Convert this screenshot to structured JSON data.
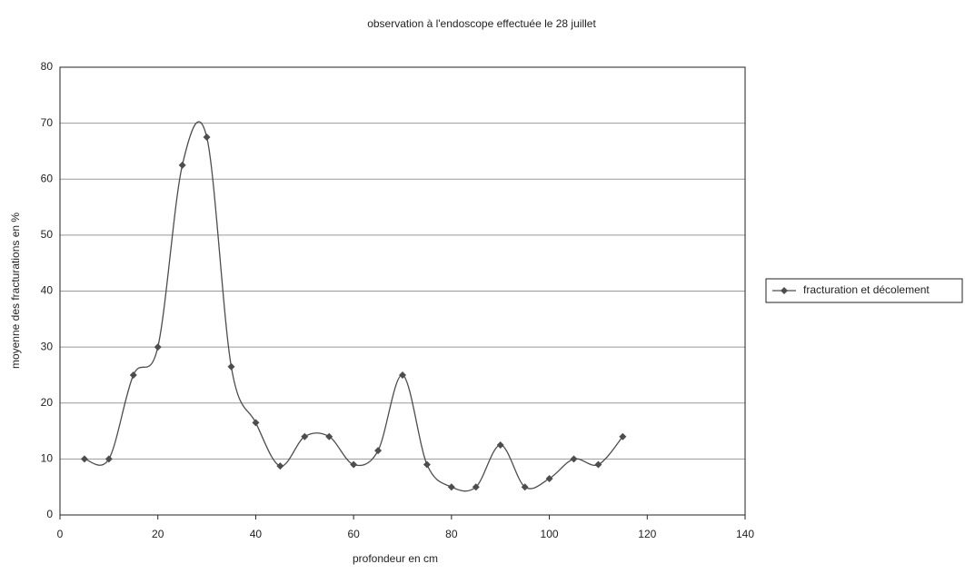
{
  "chart_data": {
    "type": "line",
    "title": "observation à l'endoscope effectuée le 28 juillet",
    "xlabel": "profondeur en cm",
    "ylabel": "moyenne des fracturations en %",
    "x": [
      5,
      10,
      15,
      20,
      25,
      30,
      35,
      40,
      45,
      50,
      55,
      60,
      65,
      70,
      75,
      80,
      85,
      90,
      95,
      100,
      105,
      110,
      115
    ],
    "series": [
      {
        "name": "fracturation et décolement",
        "color": "#4d4d4d",
        "values": [
          10,
          10,
          25,
          30,
          62.5,
          67.5,
          26.5,
          16.5,
          8.75,
          14,
          14,
          9,
          11.5,
          25,
          9,
          5,
          5,
          12.5,
          5,
          6.5,
          10,
          9,
          14
        ]
      }
    ],
    "xlim": [
      0,
      140
    ],
    "xticks": [
      0,
      20,
      40,
      60,
      80,
      100,
      120,
      140
    ],
    "ylim": [
      0,
      80
    ],
    "yticks": [
      0,
      10,
      20,
      30,
      40,
      50,
      60,
      70,
      80
    ],
    "grid": true,
    "smooth": true,
    "legend": "right"
  }
}
